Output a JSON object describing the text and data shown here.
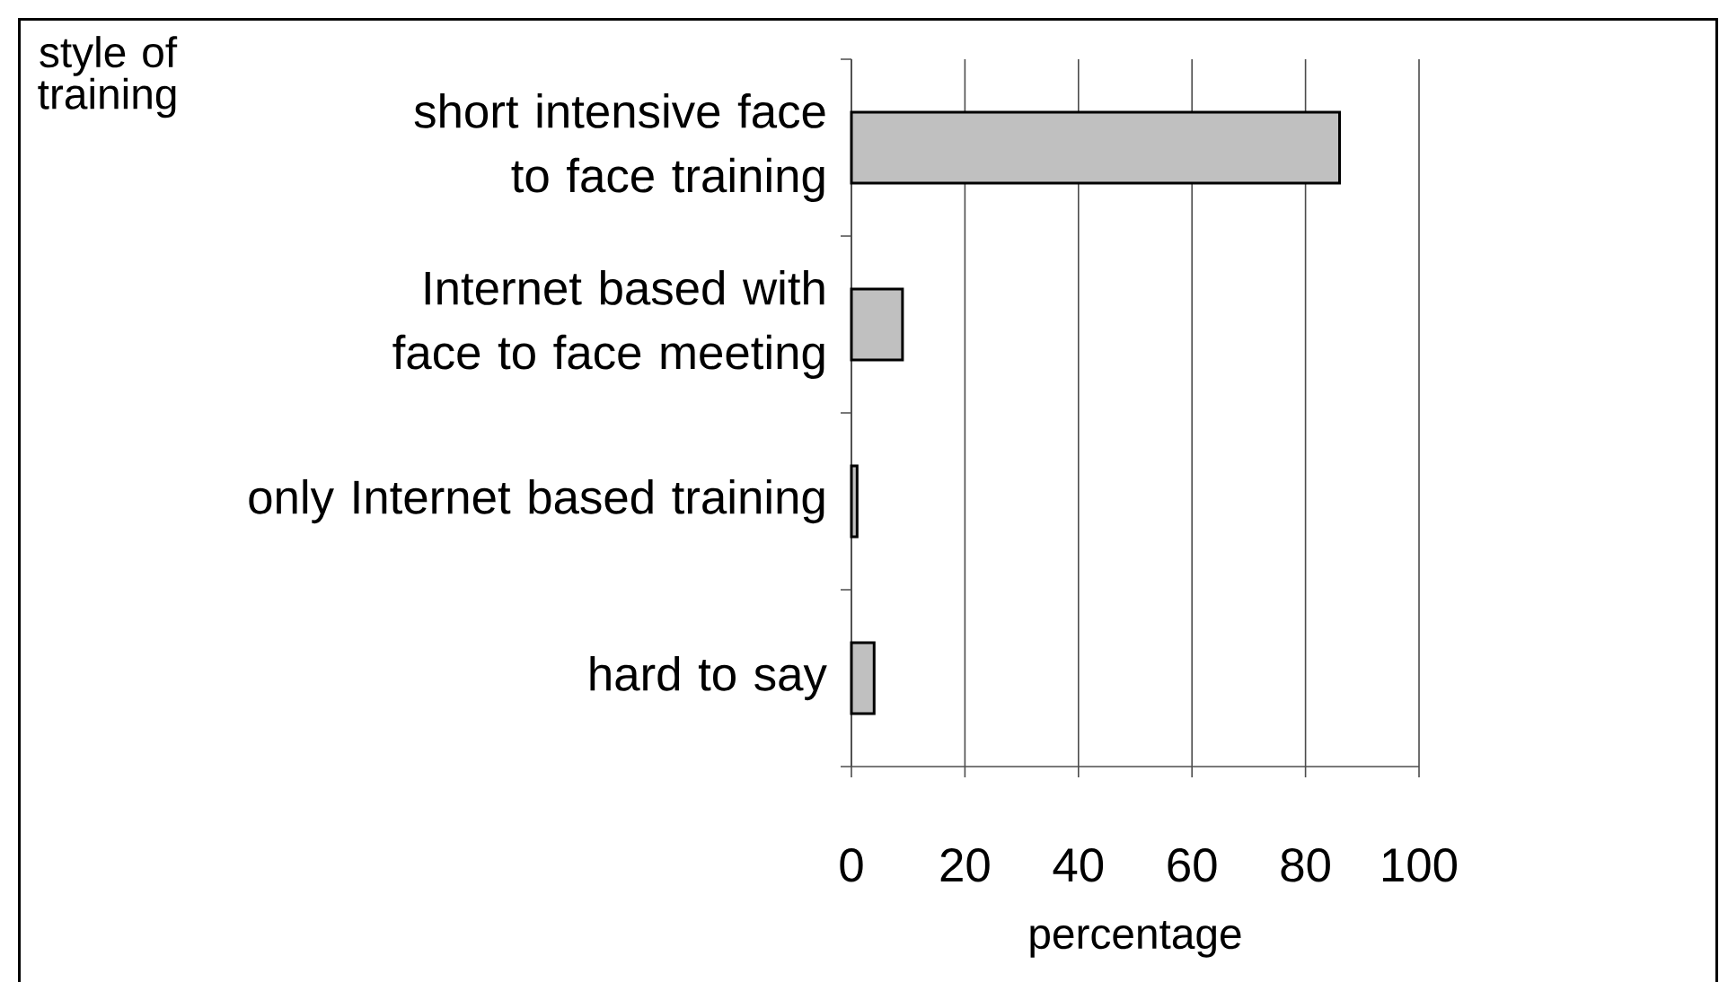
{
  "chart_data": {
    "type": "bar",
    "orientation": "horizontal",
    "ylabel": "style of training",
    "xlabel": "percentage",
    "categories": [
      "short intensive face to face training",
      "Internet based with face to face meeting",
      "only Internet based training",
      "hard to say"
    ],
    "values": [
      86,
      9,
      1,
      4
    ],
    "color": "#c0c0c0",
    "xlim": [
      0,
      100
    ],
    "xticks": [
      0,
      20,
      40,
      60,
      80,
      100
    ],
    "grid": "x"
  }
}
